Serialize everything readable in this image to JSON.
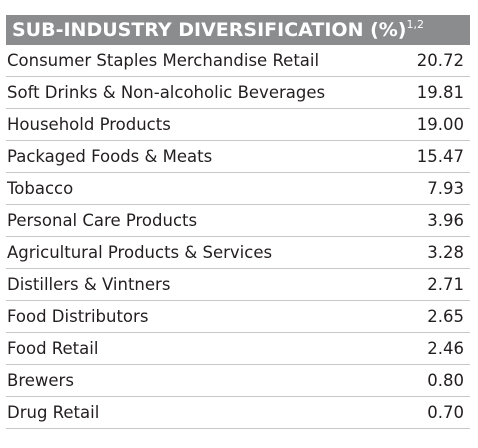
{
  "header": {
    "title": "SUB-INDUSTRY DIVERSIFICATION (%)",
    "footnote_refs": "1,2"
  },
  "table": {
    "rows": [
      [
        "Consumer Staples Merchandise Retail",
        "20.72"
      ],
      [
        "Soft Drinks & Non-alcoholic Beverages",
        "19.81"
      ],
      [
        "Household Products",
        "19.00"
      ],
      [
        "Packaged Foods & Meats",
        "15.47"
      ],
      [
        "Tobacco",
        "7.93"
      ],
      [
        "Personal Care Products",
        "3.96"
      ],
      [
        "Agricultural Products & Services",
        "3.28"
      ],
      [
        "Distillers & Vintners",
        "2.71"
      ],
      [
        "Food Distributors",
        "2.65"
      ],
      [
        "Food Retail",
        "2.46"
      ],
      [
        "Brewers",
        "0.80"
      ],
      [
        "Drug Retail",
        "0.70"
      ]
    ]
  }
}
